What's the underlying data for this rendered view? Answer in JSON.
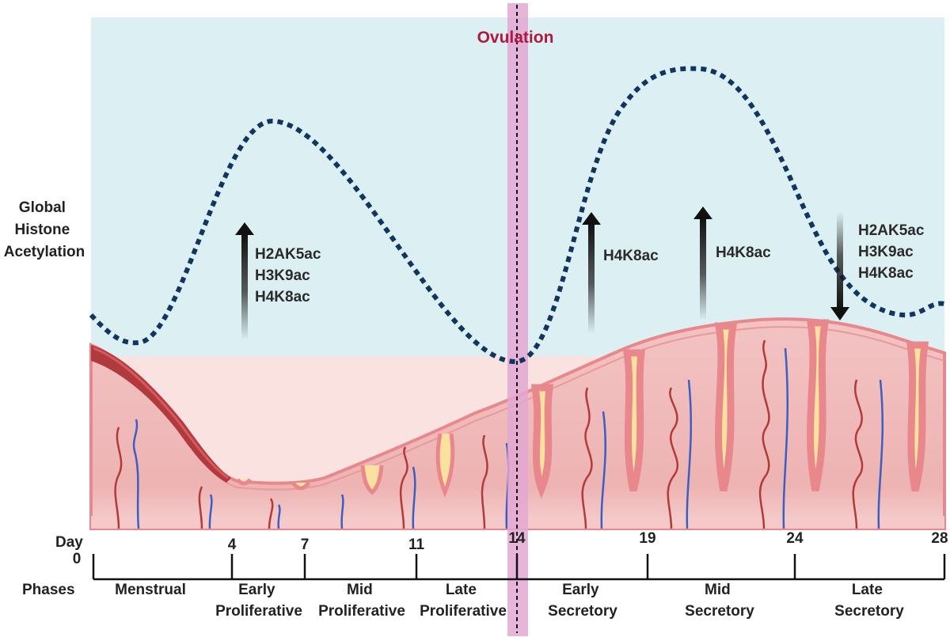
{
  "ovulation_label": "Ovulation",
  "y_axis_label": [
    "Global",
    "Histone",
    "Acetylation"
  ],
  "markers": [
    {
      "lines": [
        "H2AK5ac",
        "H3K9ac",
        "H4K8ac"
      ],
      "direction": "up"
    },
    {
      "lines": [
        "H4K8ac"
      ],
      "direction": "up"
    },
    {
      "lines": [
        "H4K8ac"
      ],
      "direction": "up"
    },
    {
      "lines": [
        "H2AK5ac",
        "H3K9ac",
        "H4K8ac"
      ],
      "direction": "down"
    }
  ],
  "day_axis": {
    "label": "Day",
    "ticks": [
      "0",
      "4",
      "7",
      "11",
      "14",
      "19",
      "24",
      "28"
    ]
  },
  "phases_label": "Phases",
  "phases": [
    [
      "Menstrual"
    ],
    [
      "Early",
      "Proliferative"
    ],
    [
      "Mid",
      "Proliferative"
    ],
    [
      "Late",
      "Proliferative"
    ],
    [
      "Early",
      "Secretory"
    ],
    [
      "Mid",
      "Secretory"
    ],
    [
      "Late",
      "Secretory"
    ]
  ],
  "colors": {
    "background_panel": "#dcf0f3",
    "endometrium_fill": "#f0bcbc",
    "endometrium_edge": "#e8888c",
    "menstrual_shedding": "#b03a3e",
    "gland_secretion": "#fbe0a0",
    "ovulation_band": "#e3a7d4",
    "ovulation_text": "#b0193f",
    "curve": "#0f3560",
    "arteriole": "#b23a3a",
    "vein": "#3b5fc0"
  }
}
